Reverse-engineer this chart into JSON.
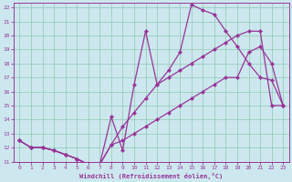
{
  "background_color": "#cce8ee",
  "grid_color": "#99ccbb",
  "line_color": "#993399",
  "marker": "D",
  "marker_size": 2.2,
  "linewidth": 0.9,
  "xlim": [
    -0.5,
    23.5
  ],
  "ylim": [
    11,
    22.3
  ],
  "xlabel": "Windchill (Refroidissement éolien,°C)",
  "xticks": [
    0,
    1,
    2,
    3,
    4,
    5,
    6,
    7,
    8,
    9,
    10,
    11,
    12,
    13,
    14,
    15,
    16,
    17,
    18,
    19,
    20,
    21,
    22,
    23
  ],
  "yticks": [
    11,
    12,
    13,
    14,
    15,
    16,
    17,
    18,
    19,
    20,
    21,
    22
  ],
  "series": [
    [
      12.5,
      12.0,
      12.0,
      11.8,
      11.5,
      11.2,
      10.8,
      10.8,
      12.2,
      13.5,
      14.5,
      15.5,
      16.5,
      17.0,
      17.5,
      18.0,
      18.5,
      19.0,
      19.5,
      20.0,
      20.3,
      20.3,
      15.0,
      15.0
    ],
    [
      12.5,
      12.0,
      12.0,
      11.8,
      11.5,
      11.2,
      10.8,
      10.8,
      14.2,
      11.8,
      16.5,
      20.3,
      16.5,
      17.5,
      18.8,
      22.2,
      21.8,
      21.5,
      20.3,
      19.2,
      18.0,
      17.0,
      16.8,
      15.0
    ],
    [
      12.5,
      12.0,
      12.0,
      11.8,
      11.5,
      11.2,
      10.8,
      10.8,
      12.2,
      12.5,
      13.0,
      13.5,
      14.0,
      14.5,
      15.0,
      15.5,
      16.0,
      16.5,
      17.0,
      17.0,
      18.8,
      19.2,
      18.0,
      15.0
    ]
  ]
}
